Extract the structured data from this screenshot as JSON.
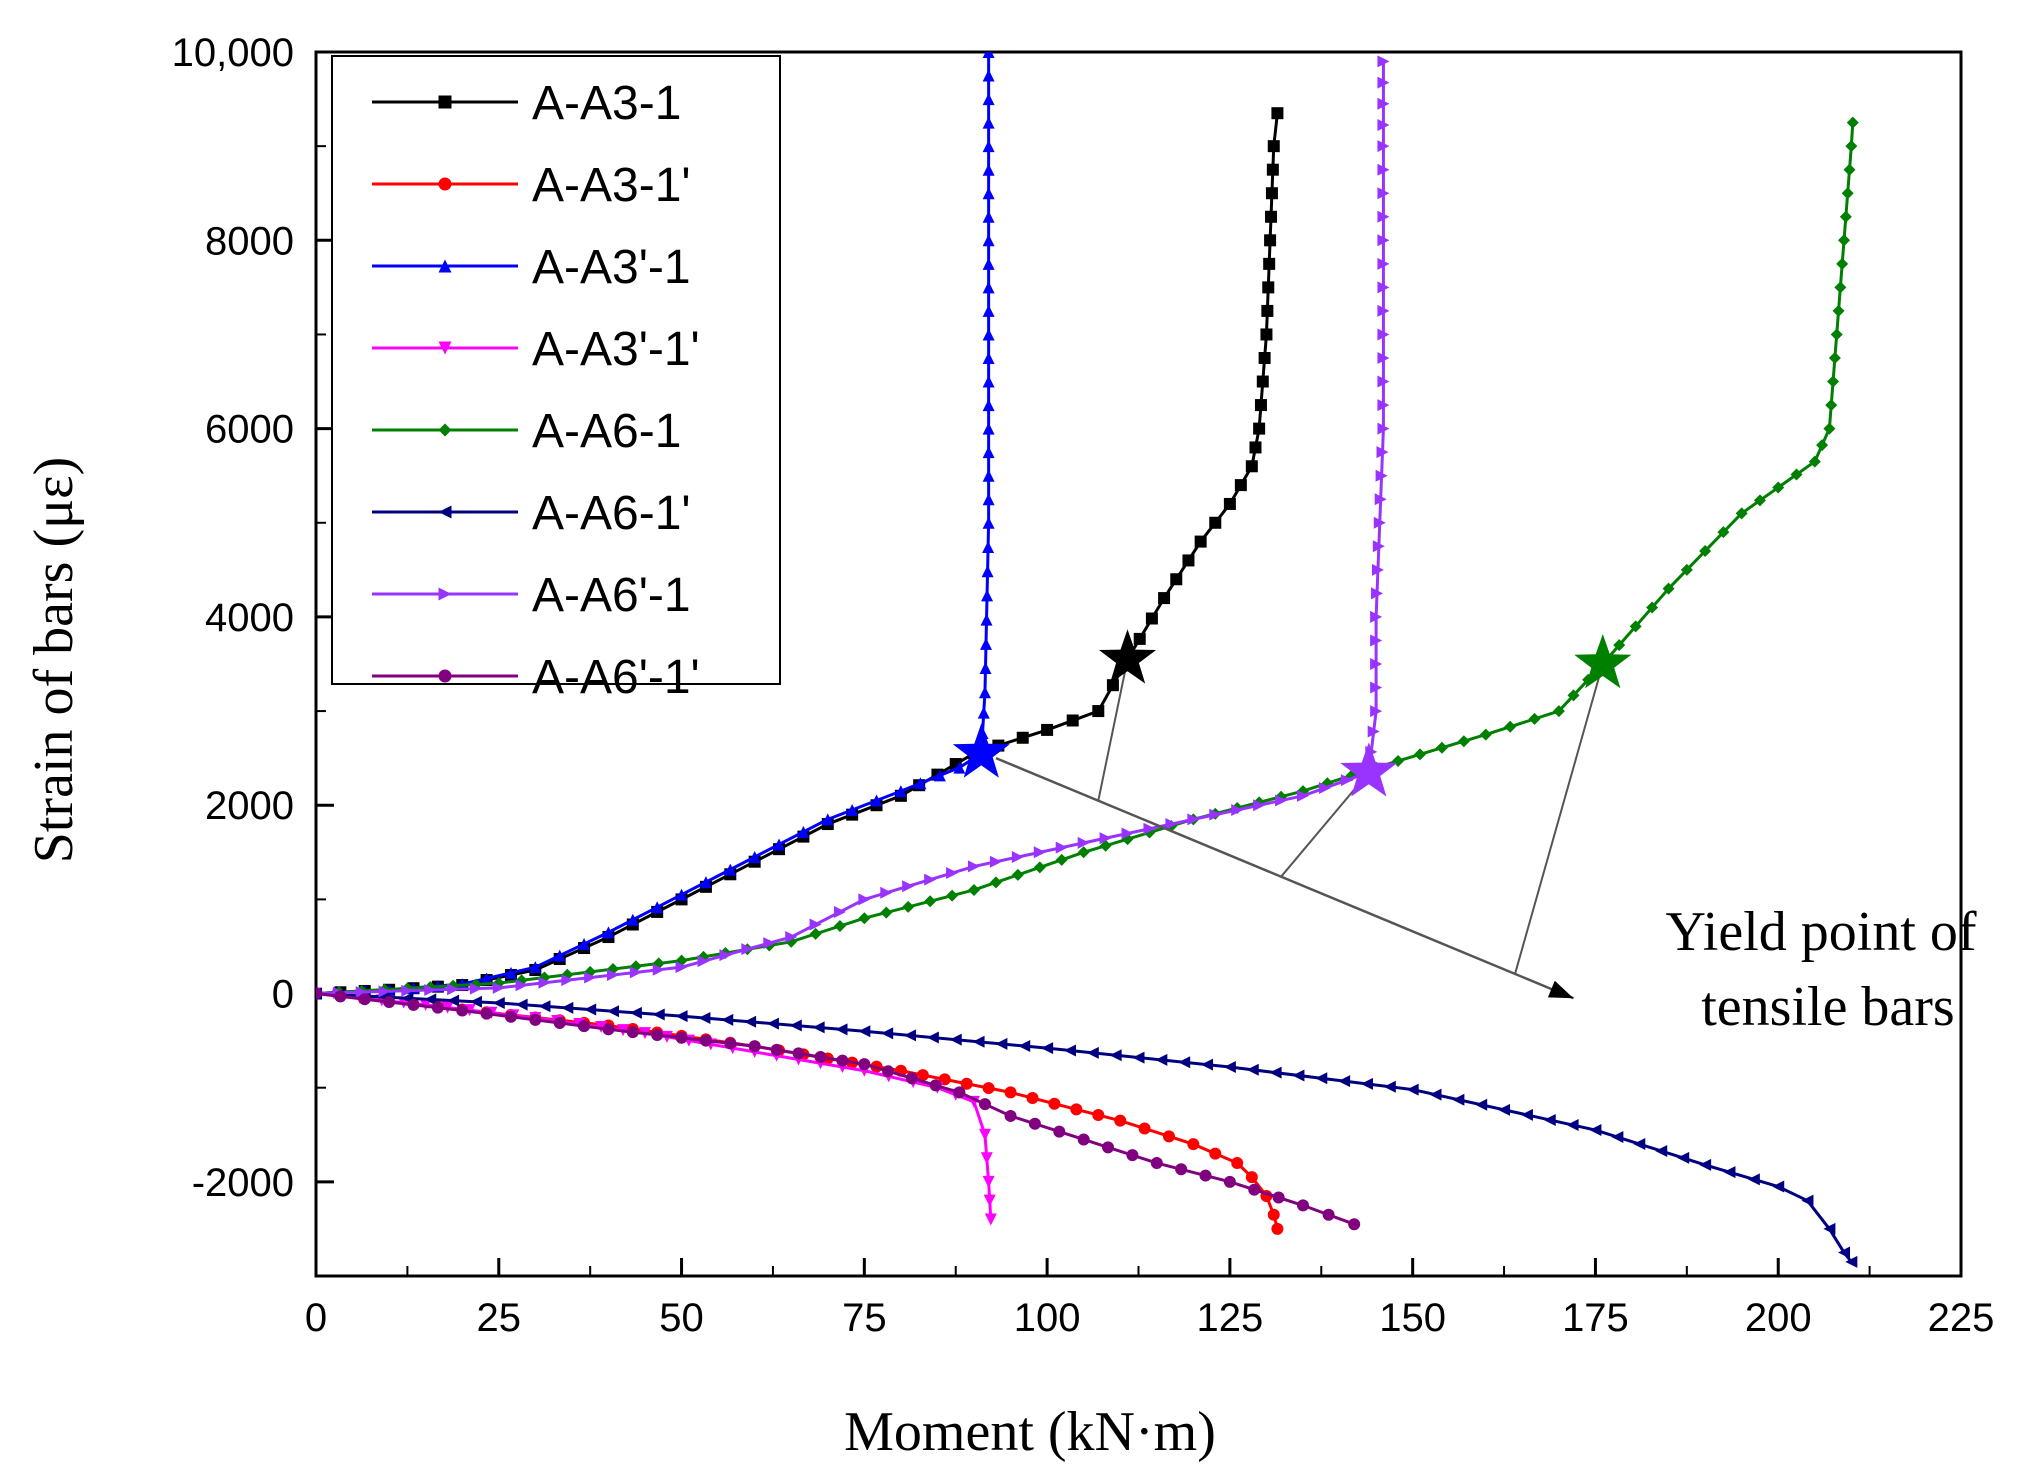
{
  "chart_data": {
    "type": "line",
    "title": "",
    "xlabel": "Moment (kN·m)",
    "ylabel": "Strain of bars (με)",
    "xlim": [
      0,
      225
    ],
    "ylim": [
      -3000,
      10000
    ],
    "grid": false,
    "legend_position": "top-left",
    "x_ticks": [
      0,
      25,
      50,
      75,
      100,
      125,
      150,
      175,
      200,
      225
    ],
    "x_tick_labels": [
      "0",
      "25",
      "50",
      "75",
      "100",
      "125",
      "150",
      "175",
      "200",
      "225"
    ],
    "y_ticks": [
      -2000,
      0,
      2000,
      4000,
      6000,
      8000,
      10000
    ],
    "y_tick_labels": [
      "-2000",
      "0",
      "2000",
      "4000",
      "6000",
      "8000",
      "10,000"
    ],
    "series": [
      {
        "name": "A-A3-1",
        "color": "#000000",
        "marker": "square",
        "points": [
          [
            0,
            0
          ],
          [
            10,
            40
          ],
          [
            20,
            90
          ],
          [
            30,
            250
          ],
          [
            40,
            600
          ],
          [
            50,
            1000
          ],
          [
            60,
            1400
          ],
          [
            70,
            1800
          ],
          [
            80,
            2100
          ],
          [
            90,
            2550
          ],
          [
            100,
            2800
          ],
          [
            107,
            3000
          ],
          [
            111,
            3550
          ],
          [
            116,
            4200
          ],
          [
            121,
            4800
          ],
          [
            125,
            5200
          ],
          [
            128,
            5600
          ],
          [
            129,
            6000
          ],
          [
            130,
            7000
          ],
          [
            130.5,
            8000
          ],
          [
            131,
            9000
          ],
          [
            131.5,
            9350
          ]
        ]
      },
      {
        "name": "A-A3-1'",
        "color": "#ff0000",
        "marker": "circle",
        "points": [
          [
            0,
            0
          ],
          [
            20,
            -170
          ],
          [
            40,
            -340
          ],
          [
            60,
            -560
          ],
          [
            80,
            -820
          ],
          [
            95,
            -1050
          ],
          [
            110,
            -1350
          ],
          [
            120,
            -1600
          ],
          [
            126,
            -1800
          ],
          [
            128,
            -1950
          ],
          [
            130,
            -2150
          ],
          [
            131,
            -2350
          ],
          [
            131.5,
            -2500
          ]
        ]
      },
      {
        "name": "A-A3'-1",
        "color": "#0000ff",
        "marker": "triangle-up",
        "points": [
          [
            0,
            0
          ],
          [
            10,
            40
          ],
          [
            20,
            100
          ],
          [
            30,
            280
          ],
          [
            40,
            650
          ],
          [
            50,
            1050
          ],
          [
            60,
            1450
          ],
          [
            70,
            1850
          ],
          [
            80,
            2150
          ],
          [
            88,
            2400
          ],
          [
            91,
            2550
          ],
          [
            91.5,
            3200
          ],
          [
            92,
            5000
          ],
          [
            92,
            7000
          ],
          [
            92,
            9000
          ],
          [
            92,
            10000
          ]
        ]
      },
      {
        "name": "A-A3'-1'",
        "color": "#ff00ff",
        "marker": "triangle-down",
        "points": [
          [
            0,
            0
          ],
          [
            15,
            -120
          ],
          [
            30,
            -260
          ],
          [
            45,
            -420
          ],
          [
            60,
            -620
          ],
          [
            75,
            -820
          ],
          [
            85,
            -1000
          ],
          [
            90,
            -1150
          ],
          [
            91.5,
            -1500
          ],
          [
            92,
            -2000
          ],
          [
            92.3,
            -2400
          ]
        ]
      },
      {
        "name": "A-A6-1",
        "color": "#008000",
        "marker": "diamond",
        "points": [
          [
            0,
            0
          ],
          [
            25,
            110
          ],
          [
            50,
            350
          ],
          [
            65,
            550
          ],
          [
            75,
            800
          ],
          [
            90,
            1100
          ],
          [
            105,
            1500
          ],
          [
            120,
            1850
          ],
          [
            135,
            2150
          ],
          [
            145,
            2400
          ],
          [
            160,
            2750
          ],
          [
            170,
            3000
          ],
          [
            176,
            3500
          ],
          [
            185,
            4300
          ],
          [
            195,
            5100
          ],
          [
            205,
            5650
          ],
          [
            207,
            6000
          ],
          [
            208,
            7000
          ],
          [
            209,
            8000
          ],
          [
            210,
            9000
          ],
          [
            210.2,
            9250
          ]
        ]
      },
      {
        "name": "A-A6-1'",
        "color": "#000080",
        "marker": "triangle-left",
        "points": [
          [
            0,
            0
          ],
          [
            25,
            -100
          ],
          [
            50,
            -240
          ],
          [
            75,
            -400
          ],
          [
            100,
            -580
          ],
          [
            125,
            -780
          ],
          [
            150,
            -1020
          ],
          [
            175,
            -1450
          ],
          [
            190,
            -1820
          ],
          [
            200,
            -2050
          ],
          [
            204,
            -2200
          ],
          [
            207,
            -2500
          ],
          [
            209,
            -2750
          ],
          [
            210,
            -2850
          ]
        ]
      },
      {
        "name": "A-A6'-1",
        "color": "#9933ff",
        "marker": "triangle-right",
        "points": [
          [
            0,
            0
          ],
          [
            25,
            60
          ],
          [
            50,
            280
          ],
          [
            65,
            600
          ],
          [
            75,
            1000
          ],
          [
            90,
            1350
          ],
          [
            105,
            1600
          ],
          [
            120,
            1850
          ],
          [
            135,
            2100
          ],
          [
            144,
            2350
          ],
          [
            145,
            3000
          ],
          [
            145,
            4000
          ],
          [
            145.5,
            5000
          ],
          [
            146,
            6000
          ],
          [
            146,
            7000
          ],
          [
            146,
            8000
          ],
          [
            146,
            9000
          ],
          [
            146,
            9900
          ]
        ]
      },
      {
        "name": "A-A6'-1'",
        "color": "#800080",
        "marker": "circle",
        "points": [
          [
            0,
            0
          ],
          [
            20,
            -180
          ],
          [
            40,
            -380
          ],
          [
            60,
            -560
          ],
          [
            75,
            -750
          ],
          [
            88,
            -1050
          ],
          [
            95,
            -1300
          ],
          [
            105,
            -1550
          ],
          [
            115,
            -1800
          ],
          [
            125,
            -2000
          ],
          [
            135,
            -2250
          ],
          [
            142,
            -2450
          ]
        ]
      }
    ],
    "yield_points": [
      {
        "series": "A-A3-1",
        "x": 111,
        "y": 3550,
        "color": "#000000"
      },
      {
        "series": "A-A3'-1",
        "x": 91,
        "y": 2550,
        "color": "#0000ff"
      },
      {
        "series": "A-A6'-1",
        "x": 144,
        "y": 2350,
        "color": "#9933ff"
      },
      {
        "series": "A-A6-1",
        "x": 176,
        "y": 3500,
        "color": "#008000"
      }
    ],
    "annotation": {
      "text_lines": [
        "Yield point of",
        "tensile bars"
      ],
      "arrow_from": [
        93,
        2500
      ],
      "arrow_to": [
        172,
        -50
      ]
    }
  }
}
